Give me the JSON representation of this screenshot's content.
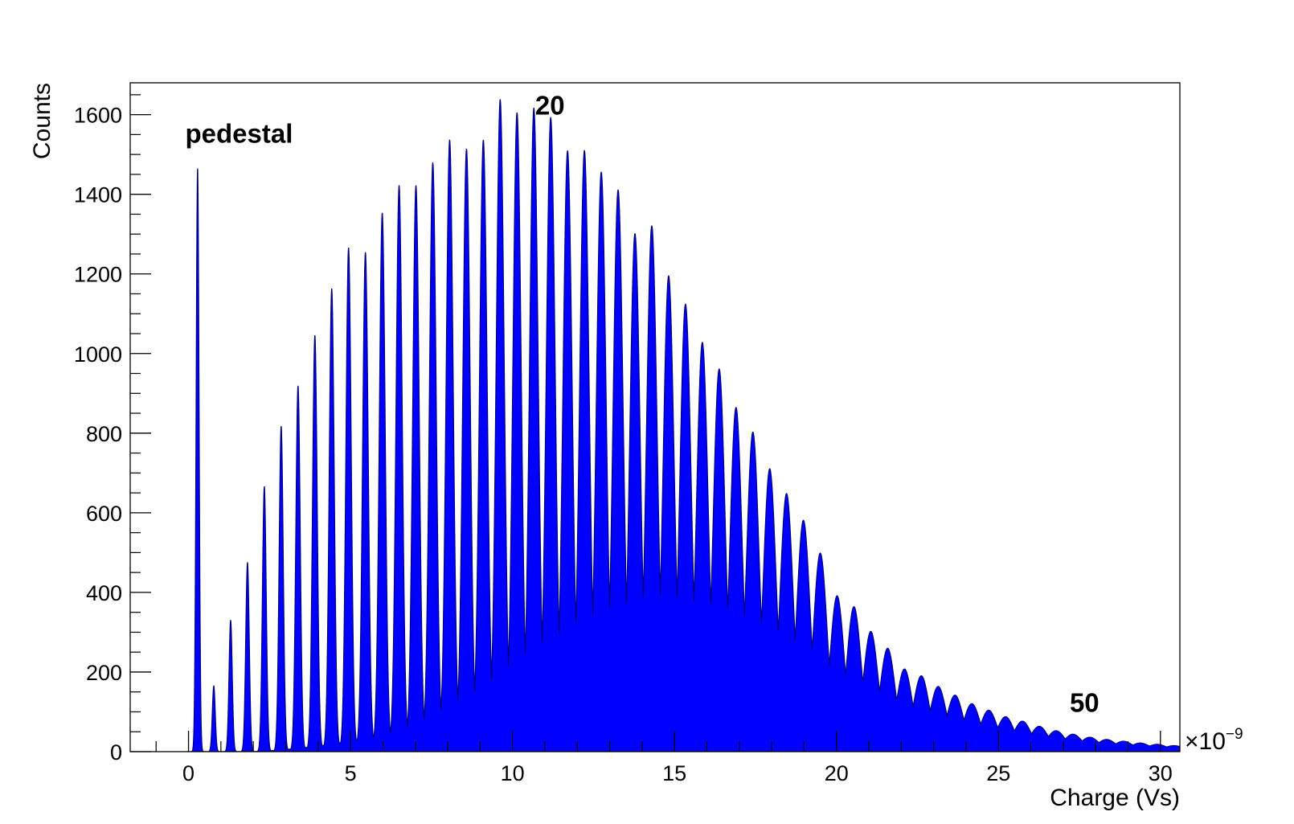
{
  "chart_data": {
    "type": "area",
    "title": "",
    "xlabel": "Charge (Vs)",
    "ylabel": "Counts",
    "x_multiplier": "×10",
    "x_multiplier_exp": "−9",
    "xlim": [
      -1.8,
      30.6
    ],
    "ylim": [
      0,
      1680
    ],
    "x_ticks": [
      0,
      5,
      10,
      15,
      20,
      25,
      30
    ],
    "y_ticks": [
      0,
      200,
      400,
      600,
      800,
      1000,
      1200,
      1400,
      1600
    ],
    "grid": false,
    "fill_color": "#0000ff",
    "line_color": "#000080",
    "series": [
      {
        "pedestal": {
          "x": 0.28,
          "y": 1465
        },
        "peak_spacing": 0.52,
        "first_peak_x": 0.78,
        "peak_heights": [
          165,
          330,
          475,
          665,
          815,
          915,
          1040,
          1155,
          1255,
          1240,
          1335,
          1400,
          1395,
          1450,
          1505,
          1480,
          1500,
          1600,
          1565,
          1575,
          1550,
          1465,
          1465,
          1410,
          1365,
          1255,
          1275,
          1150,
          1080,
          985,
          920,
          825,
          765,
          675,
          615,
          550,
          470,
          365,
          340,
          280,
          240,
          190,
          175,
          150,
          130,
          110,
          95,
          80,
          70,
          58,
          48,
          40,
          33,
          28,
          24,
          20,
          17,
          14,
          12,
          10
        ]
      }
    ],
    "annotations": [
      {
        "text": "pedestal",
        "x": -0.1,
        "y": 1530
      },
      {
        "text": "20",
        "x": 10.7,
        "y": 1600
      },
      {
        "text": "50",
        "x": 27.2,
        "y": 100
      }
    ]
  }
}
